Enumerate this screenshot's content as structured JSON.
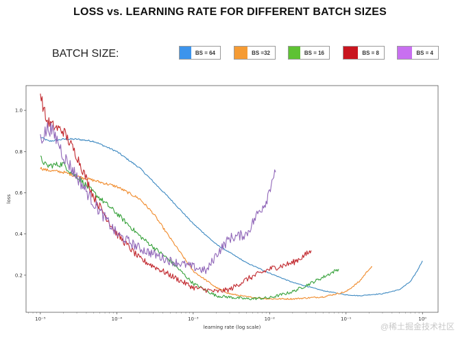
{
  "chart_data": {
    "type": "line",
    "title": "LOSS vs. LEARNING RATE  FOR DIFFERENT BATCH SIZES",
    "legend_title": "BATCH SIZE:",
    "xlabel": "learning rate (log scale)",
    "ylabel": "loss",
    "x_scale": "log",
    "xlim": [
      6.5e-06,
      1.6
    ],
    "ylim": [
      0.02,
      1.12
    ],
    "x_ticks": [
      {
        "value": 1e-05,
        "label": "10⁻⁵"
      },
      {
        "value": 0.0001,
        "label": "10⁻⁴"
      },
      {
        "value": 0.001,
        "label": "10⁻³"
      },
      {
        "value": 0.01,
        "label": "10⁻²"
      },
      {
        "value": 0.1,
        "label": "10⁻¹"
      },
      {
        "value": 1,
        "label": "10⁰"
      }
    ],
    "y_ticks": [
      {
        "value": 0.2,
        "label": "0.2"
      },
      {
        "value": 0.4,
        "label": "0.4"
      },
      {
        "value": 0.6,
        "label": "0.6"
      },
      {
        "value": 0.8,
        "label": "0.8"
      },
      {
        "value": 1.0,
        "label": "1.0"
      }
    ],
    "series": [
      {
        "name": "BS = 64",
        "legend_label": "BS = 64",
        "color": "#3d94ec",
        "line_color": "#3a87c0",
        "noise": 0.003,
        "x": [
          1e-05,
          1.3e-05,
          2e-05,
          3e-05,
          5e-05,
          0.0001,
          0.0002,
          0.0005,
          0.001,
          0.002,
          0.005,
          0.01,
          0.02,
          0.05,
          0.1,
          0.15,
          0.2,
          0.3,
          0.5,
          0.7,
          0.85,
          1.0
        ],
        "y": [
          0.87,
          0.85,
          0.86,
          0.86,
          0.85,
          0.8,
          0.72,
          0.57,
          0.45,
          0.35,
          0.26,
          0.21,
          0.165,
          0.125,
          0.105,
          0.1,
          0.105,
          0.11,
          0.13,
          0.17,
          0.22,
          0.27
        ]
      },
      {
        "name": "BS =32",
        "legend_label": "BS =32",
        "color": "#f59b34",
        "line_color": "#f08a2a",
        "noise": 0.006,
        "x": [
          1e-05,
          1.2e-05,
          2e-05,
          3e-05,
          5e-05,
          0.0001,
          0.0002,
          0.0003,
          0.0005,
          0.001,
          0.002,
          0.003,
          0.005,
          0.01,
          0.02,
          0.05,
          0.1,
          0.15,
          0.2,
          0.22
        ],
        "y": [
          0.72,
          0.71,
          0.7,
          0.68,
          0.66,
          0.63,
          0.57,
          0.5,
          0.38,
          0.22,
          0.14,
          0.11,
          0.095,
          0.085,
          0.085,
          0.095,
          0.12,
          0.17,
          0.23,
          0.24
        ]
      },
      {
        "name": "BS = 16",
        "legend_label": "BS = 16",
        "color": "#5ec233",
        "line_color": "#36a13a",
        "noise": 0.012,
        "x": [
          1e-05,
          1.2e-05,
          2e-05,
          2.5e-05,
          3e-05,
          5e-05,
          0.0001,
          0.0002,
          0.0005,
          0.001,
          0.002,
          0.005,
          0.01,
          0.02,
          0.03,
          0.05,
          0.08
        ],
        "y": [
          0.77,
          0.73,
          0.74,
          0.7,
          0.68,
          0.6,
          0.5,
          0.39,
          0.27,
          0.16,
          0.1,
          0.085,
          0.09,
          0.12,
          0.15,
          0.19,
          0.23
        ]
      },
      {
        "name": "BS = 8",
        "legend_label": "BS = 8",
        "color": "#c9151f",
        "line_color": "#c1272d",
        "noise": 0.02,
        "x": [
          1e-05,
          1.2e-05,
          1.5e-05,
          2e-05,
          3e-05,
          5e-05,
          0.0001,
          0.0002,
          0.0005,
          0.001,
          0.002,
          0.003,
          0.005,
          0.01,
          0.02,
          0.03,
          0.035
        ],
        "y": [
          1.08,
          0.95,
          0.92,
          0.9,
          0.78,
          0.58,
          0.4,
          0.28,
          0.2,
          0.14,
          0.12,
          0.13,
          0.18,
          0.23,
          0.26,
          0.3,
          0.32
        ]
      },
      {
        "name": "BS = 4",
        "legend_label": "BS = 4",
        "color": "#c870f0",
        "line_color": "#9066b8",
        "noise": 0.028,
        "x": [
          1e-05,
          1.1e-05,
          1.3e-05,
          1.7e-05,
          2e-05,
          3e-05,
          5e-05,
          0.0001,
          0.0002,
          0.0005,
          0.001,
          0.0015,
          0.002,
          0.003,
          0.005,
          0.007,
          0.009,
          0.01,
          0.011,
          0.012
        ],
        "y": [
          0.86,
          0.88,
          0.92,
          0.85,
          0.78,
          0.68,
          0.55,
          0.4,
          0.33,
          0.27,
          0.24,
          0.22,
          0.3,
          0.38,
          0.4,
          0.5,
          0.56,
          0.62,
          0.68,
          0.7
        ]
      }
    ]
  },
  "watermark": "@稀土掘金技术社区"
}
